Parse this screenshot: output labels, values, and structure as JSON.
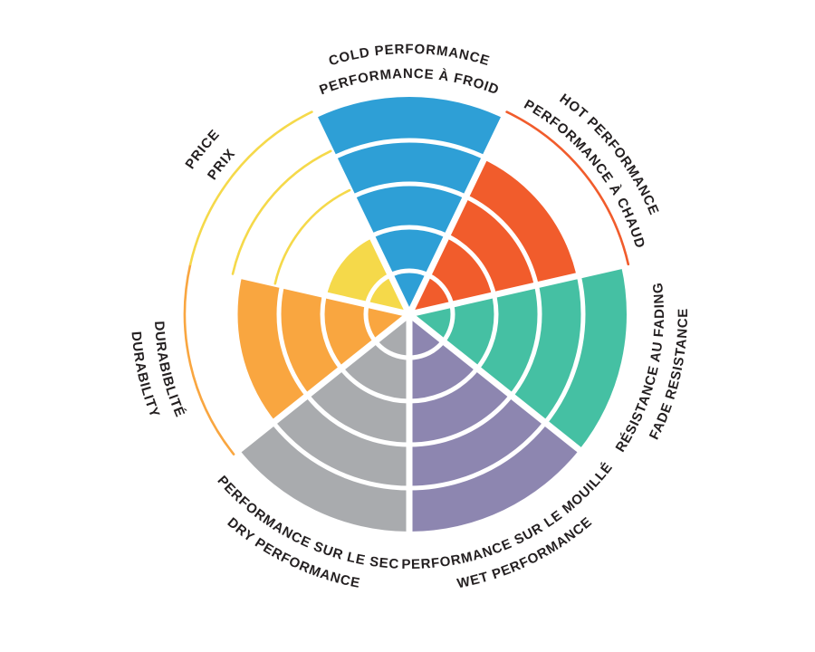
{
  "chart_data": {
    "type": "radial_wheel",
    "title": "",
    "rings": 5,
    "grid": true,
    "legend_position": "around",
    "background": "#FFFFFF",
    "text_color": "#231F20",
    "ring_separator_color": "#FFFFFF",
    "segments": [
      {
        "name": "cold-performance",
        "value": 5,
        "color": "#2E9FD6",
        "lines": [
          "COLD PERFORMANCE",
          "PERFORMANCE À FROID"
        ]
      },
      {
        "name": "hot-performance",
        "value": 4,
        "color": "#F15C2C",
        "lines": [
          "HOT PERFORMANCE",
          "PERFORMANCE À CHAUD"
        ]
      },
      {
        "name": "fade-resistance",
        "value": 5,
        "color": "#45C0A3",
        "lines": [
          "RÉSISTANCE AU FADING",
          "FADE RESISTANCE"
        ]
      },
      {
        "name": "wet-performance",
        "value": 5,
        "color": "#8D86B0",
        "lines": [
          "PERFORMANCE SUR LE MOUILLÉ",
          "WET PERFORMANCE"
        ]
      },
      {
        "name": "dry-performance",
        "value": 5,
        "color": "#A9ABAE",
        "lines": [
          "PERFORMANCE SUR LE SEC",
          "DRY PERFORMANCE"
        ]
      },
      {
        "name": "durability",
        "value": 4,
        "color": "#F9A640",
        "lines": [
          "DURABIBLITÉ",
          "DURABILITY"
        ]
      },
      {
        "name": "price",
        "value": 2,
        "color": "#F5D94A",
        "lines": [
          "PRICE",
          "PRIX"
        ]
      }
    ]
  }
}
